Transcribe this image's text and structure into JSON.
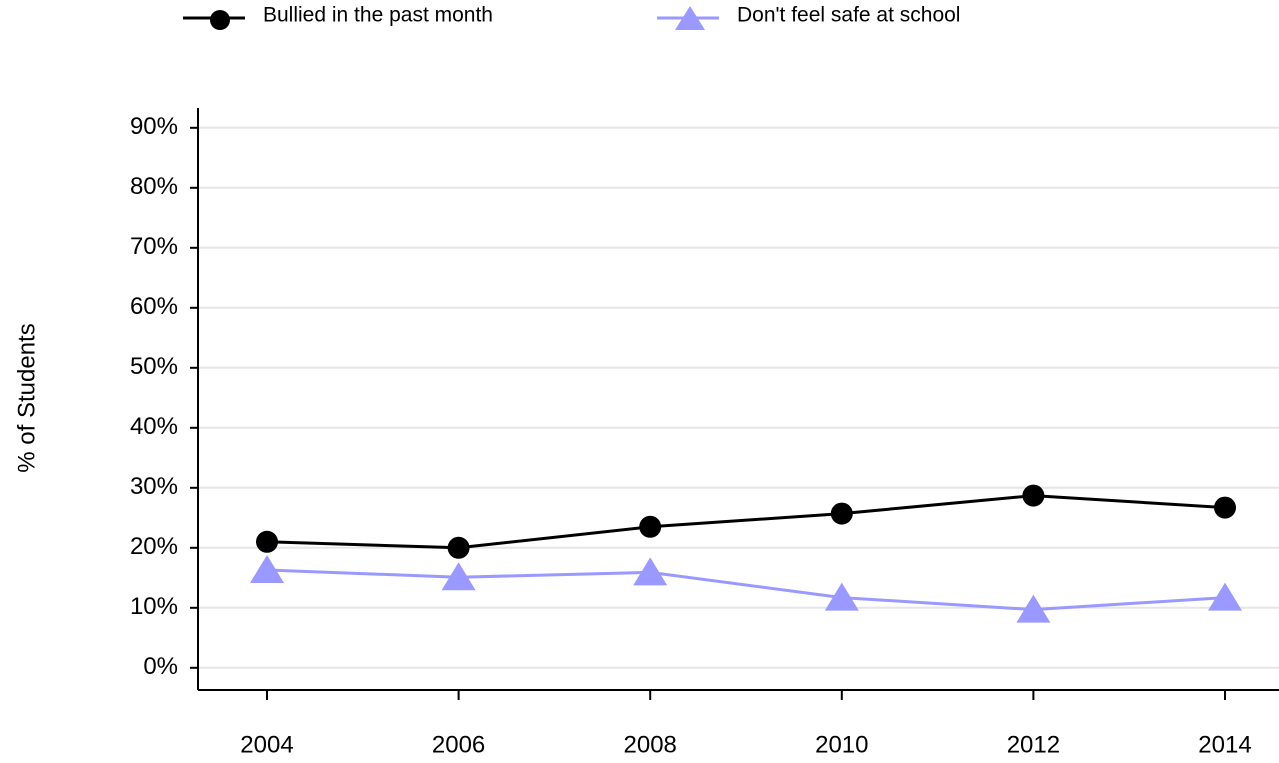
{
  "chart_data": {
    "type": "line",
    "y_label": "% of Students",
    "categories": [
      "2004",
      "2006",
      "2008",
      "2010",
      "2012",
      "2014"
    ],
    "series": [
      {
        "name": "Bullied in the past month",
        "color": "#000000",
        "marker": "circle",
        "values": [
          21,
          20,
          23.5,
          25.7,
          28.7,
          26.7
        ]
      },
      {
        "name": "Don't feel safe at school",
        "color": "#9999ff",
        "marker": "triangle",
        "values": [
          16.3,
          15.1,
          15.9,
          11.7,
          9.7,
          11.7
        ]
      }
    ],
    "ylim": [
      -3.7,
      93.3
    ],
    "yticks": [
      {
        "value": 0,
        "label": "0%"
      },
      {
        "value": 10,
        "label": "10%"
      },
      {
        "value": 20,
        "label": "20%"
      },
      {
        "value": 30,
        "label": "30%"
      },
      {
        "value": 40,
        "label": "40%"
      },
      {
        "value": 50,
        "label": "50%"
      },
      {
        "value": 60,
        "label": "60%"
      },
      {
        "value": 70,
        "label": "70%"
      },
      {
        "value": 80,
        "label": "80%"
      },
      {
        "value": 90,
        "label": "90%"
      }
    ],
    "grid": true
  }
}
